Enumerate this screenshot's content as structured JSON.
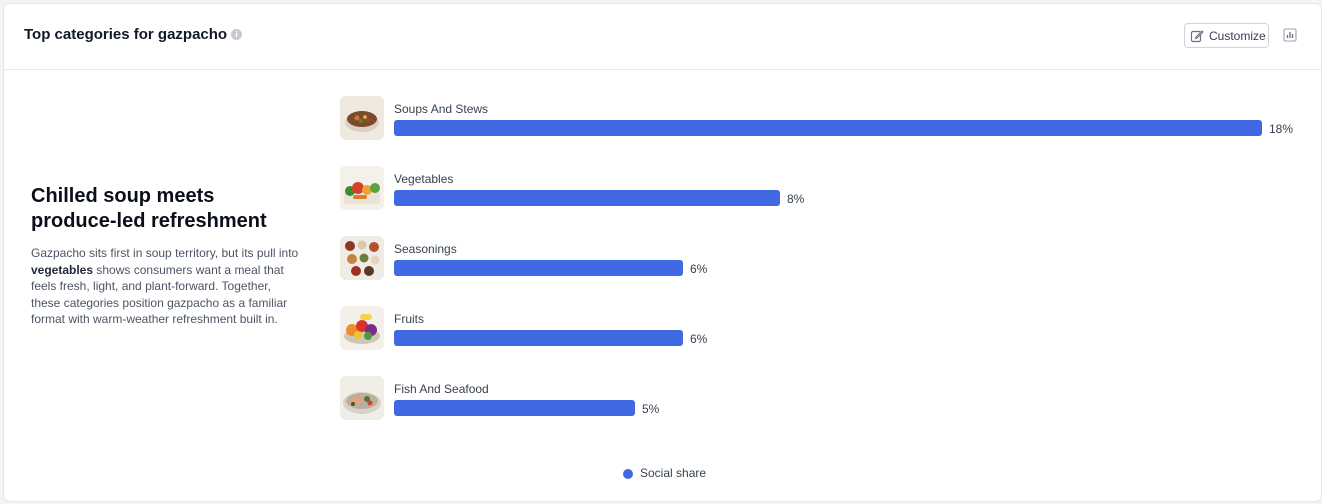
{
  "header": {
    "title": "Top categories for gazpacho",
    "customize_label": "Customize"
  },
  "insight": {
    "heading": "Chilled soup meets produce-led refreshment",
    "body_before": "Gazpacho sits first in soup territory, but its pull into ",
    "body_bold": "vegetables",
    "body_after": " shows consumers want a meal that feels fresh, light, and plant-forward. Together, these categories position gazpacho as a familiar format with warm-weather refreshment built in."
  },
  "icons": {
    "info": "info-icon",
    "customize": "pencil-edit-icon",
    "chart_toggle": "bar-chart-icon"
  },
  "colors": {
    "bar": "#4169e1"
  },
  "chart_data": {
    "type": "bar",
    "orientation": "horizontal",
    "categories": [
      "Soups And Stews",
      "Vegetables",
      "Seasonings",
      "Fruits",
      "Fish And Seafood"
    ],
    "series": [
      {
        "name": "Social share",
        "values": [
          18,
          8,
          6,
          6,
          5
        ]
      }
    ],
    "value_labels": [
      "18%",
      "8%",
      "6%",
      "6%",
      "5%"
    ],
    "legend": "bottom-center",
    "grid": false
  }
}
